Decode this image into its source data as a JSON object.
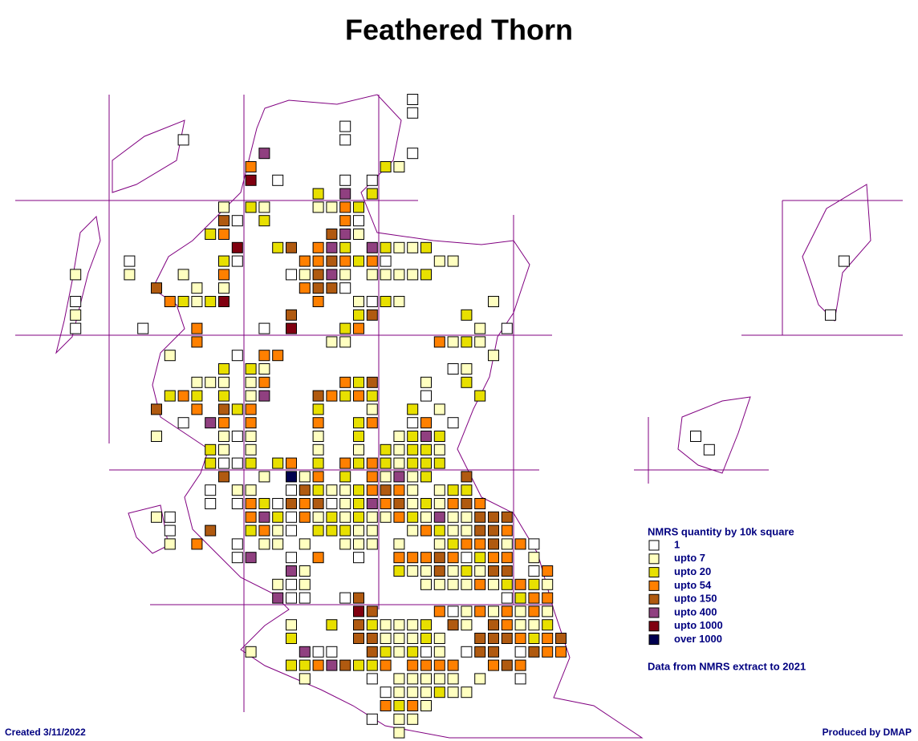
{
  "title": "Feathered Thorn",
  "legend": {
    "title": "NMRS quantity by 10k square",
    "items": [
      {
        "label": "1",
        "color": "#ffffff"
      },
      {
        "label": "upto 7",
        "color": "#ffffc0"
      },
      {
        "label": "upto 20",
        "color": "#e8e000"
      },
      {
        "label": "upto 54",
        "color": "#ff8000"
      },
      {
        "label": "upto 150",
        "color": "#b05a10"
      },
      {
        "label": "upto 400",
        "color": "#904080"
      },
      {
        "label": "upto 1000",
        "color": "#800010"
      },
      {
        "label": "over 1000",
        "color": "#000050"
      }
    ],
    "note": "Data from NMRS extract to 2021"
  },
  "footer": {
    "created": "Created 3/11/2022",
    "produced": "Produced by DMAP"
  },
  "squares": [
    [
      29,
      0,
      0
    ],
    [
      29,
      1,
      0
    ],
    [
      24,
      2,
      0
    ],
    [
      12,
      3,
      0
    ],
    [
      24,
      3,
      0
    ],
    [
      18,
      4,
      5
    ],
    [
      29,
      4,
      0
    ],
    [
      17,
      5,
      3
    ],
    [
      27,
      5,
      2
    ],
    [
      28,
      5,
      1
    ],
    [
      17,
      6,
      6
    ],
    [
      19,
      6,
      0
    ],
    [
      24,
      6,
      0
    ],
    [
      26,
      6,
      0
    ],
    [
      22,
      7,
      2
    ],
    [
      24,
      7,
      5
    ],
    [
      26,
      7,
      2
    ],
    [
      15,
      8,
      1
    ],
    [
      17,
      8,
      2
    ],
    [
      18,
      8,
      1
    ],
    [
      22,
      8,
      1
    ],
    [
      23,
      8,
      1
    ],
    [
      24,
      8,
      3
    ],
    [
      25,
      8,
      2
    ],
    [
      15,
      9,
      4
    ],
    [
      16,
      9,
      0
    ],
    [
      18,
      9,
      2
    ],
    [
      24,
      9,
      3
    ],
    [
      25,
      9,
      0
    ],
    [
      14,
      10,
      2
    ],
    [
      15,
      10,
      3
    ],
    [
      23,
      10,
      4
    ],
    [
      24,
      10,
      5
    ],
    [
      25,
      10,
      1
    ],
    [
      16,
      11,
      6
    ],
    [
      19,
      11,
      2
    ],
    [
      20,
      11,
      4
    ],
    [
      22,
      11,
      3
    ],
    [
      23,
      11,
      5
    ],
    [
      24,
      11,
      2
    ],
    [
      26,
      11,
      5
    ],
    [
      27,
      11,
      2
    ],
    [
      28,
      11,
      1
    ],
    [
      29,
      11,
      1
    ],
    [
      30,
      11,
      2
    ],
    [
      8,
      12,
      0
    ],
    [
      15,
      12,
      2
    ],
    [
      16,
      12,
      0
    ],
    [
      21,
      12,
      3
    ],
    [
      22,
      12,
      3
    ],
    [
      23,
      12,
      4
    ],
    [
      24,
      12,
      3
    ],
    [
      25,
      12,
      2
    ],
    [
      26,
      12,
      3
    ],
    [
      27,
      12,
      0
    ],
    [
      31,
      12,
      1
    ],
    [
      32,
      12,
      1
    ],
    [
      4,
      13,
      1
    ],
    [
      8,
      13,
      1
    ],
    [
      12,
      13,
      1
    ],
    [
      15,
      13,
      3
    ],
    [
      20,
      13,
      0
    ],
    [
      21,
      13,
      1
    ],
    [
      22,
      13,
      4
    ],
    [
      23,
      13,
      5
    ],
    [
      24,
      13,
      1
    ],
    [
      26,
      13,
      1
    ],
    [
      27,
      13,
      1
    ],
    [
      28,
      13,
      1
    ],
    [
      29,
      13,
      1
    ],
    [
      30,
      13,
      2
    ],
    [
      10,
      14,
      4
    ],
    [
      13,
      14,
      1
    ],
    [
      15,
      14,
      1
    ],
    [
      21,
      14,
      3
    ],
    [
      22,
      14,
      4
    ],
    [
      23,
      14,
      4
    ],
    [
      24,
      14,
      0
    ],
    [
      4,
      15,
      0
    ],
    [
      11,
      15,
      3
    ],
    [
      12,
      15,
      2
    ],
    [
      13,
      15,
      1
    ],
    [
      14,
      15,
      2
    ],
    [
      15,
      15,
      6
    ],
    [
      22,
      15,
      3
    ],
    [
      25,
      15,
      1
    ],
    [
      26,
      15,
      0
    ],
    [
      27,
      15,
      2
    ],
    [
      28,
      15,
      1
    ],
    [
      35,
      15,
      1
    ],
    [
      4,
      16,
      1
    ],
    [
      20,
      16,
      4
    ],
    [
      25,
      16,
      2
    ],
    [
      26,
      16,
      4
    ],
    [
      33,
      16,
      2
    ],
    [
      60,
      16,
      0
    ],
    [
      4,
      17,
      0
    ],
    [
      9,
      17,
      0
    ],
    [
      13,
      17,
      3
    ],
    [
      18,
      17,
      0
    ],
    [
      20,
      17,
      6
    ],
    [
      24,
      17,
      2
    ],
    [
      25,
      17,
      3
    ],
    [
      34,
      17,
      1
    ],
    [
      36,
      17,
      0
    ],
    [
      13,
      18,
      3
    ],
    [
      23,
      18,
      1
    ],
    [
      24,
      18,
      1
    ],
    [
      31,
      18,
      3
    ],
    [
      32,
      18,
      1
    ],
    [
      33,
      18,
      2
    ],
    [
      34,
      18,
      1
    ],
    [
      11,
      19,
      1
    ],
    [
      16,
      19,
      0
    ],
    [
      18,
      19,
      3
    ],
    [
      19,
      19,
      3
    ],
    [
      35,
      19,
      1
    ],
    [
      15,
      20,
      2
    ],
    [
      17,
      20,
      2
    ],
    [
      18,
      20,
      1
    ],
    [
      32,
      20,
      0
    ],
    [
      33,
      20,
      1
    ],
    [
      13,
      21,
      1
    ],
    [
      14,
      21,
      1
    ],
    [
      15,
      21,
      1
    ],
    [
      17,
      21,
      1
    ],
    [
      18,
      21,
      3
    ],
    [
      24,
      21,
      3
    ],
    [
      25,
      21,
      2
    ],
    [
      26,
      21,
      4
    ],
    [
      30,
      21,
      1
    ],
    [
      33,
      21,
      2
    ],
    [
      11,
      22,
      2
    ],
    [
      12,
      22,
      3
    ],
    [
      13,
      22,
      2
    ],
    [
      15,
      22,
      2
    ],
    [
      17,
      22,
      1
    ],
    [
      18,
      22,
      5
    ],
    [
      22,
      22,
      4
    ],
    [
      23,
      22,
      3
    ],
    [
      24,
      22,
      2
    ],
    [
      25,
      22,
      3
    ],
    [
      26,
      22,
      2
    ],
    [
      30,
      22,
      0
    ],
    [
      34,
      22,
      2
    ],
    [
      10,
      23,
      4
    ],
    [
      13,
      23,
      3
    ],
    [
      15,
      23,
      4
    ],
    [
      16,
      23,
      2
    ],
    [
      17,
      23,
      3
    ],
    [
      22,
      23,
      2
    ],
    [
      26,
      23,
      1
    ],
    [
      29,
      23,
      2
    ],
    [
      31,
      23,
      1
    ],
    [
      12,
      24,
      0
    ],
    [
      14,
      24,
      5
    ],
    [
      15,
      24,
      3
    ],
    [
      17,
      24,
      3
    ],
    [
      22,
      24,
      3
    ],
    [
      25,
      24,
      2
    ],
    [
      26,
      24,
      3
    ],
    [
      29,
      24,
      0
    ],
    [
      30,
      24,
      3
    ],
    [
      32,
      24,
      0
    ],
    [
      10,
      25,
      1
    ],
    [
      15,
      25,
      1
    ],
    [
      16,
      25,
      0
    ],
    [
      17,
      25,
      1
    ],
    [
      22,
      25,
      1
    ],
    [
      25,
      25,
      2
    ],
    [
      28,
      25,
      1
    ],
    [
      29,
      25,
      2
    ],
    [
      30,
      25,
      5
    ],
    [
      31,
      25,
      2
    ],
    [
      50,
      25,
      0
    ],
    [
      14,
      26,
      2
    ],
    [
      15,
      26,
      1
    ],
    [
      17,
      26,
      1
    ],
    [
      22,
      26,
      1
    ],
    [
      25,
      26,
      1
    ],
    [
      27,
      26,
      2
    ],
    [
      28,
      26,
      1
    ],
    [
      29,
      26,
      2
    ],
    [
      30,
      26,
      2
    ],
    [
      31,
      26,
      1
    ],
    [
      51,
      26,
      0
    ],
    [
      14,
      27,
      2
    ],
    [
      15,
      27,
      0
    ],
    [
      16,
      27,
      0
    ],
    [
      17,
      27,
      2
    ],
    [
      19,
      27,
      2
    ],
    [
      20,
      27,
      3
    ],
    [
      22,
      27,
      2
    ],
    [
      24,
      27,
      3
    ],
    [
      25,
      27,
      2
    ],
    [
      26,
      27,
      3
    ],
    [
      27,
      27,
      2
    ],
    [
      28,
      27,
      1
    ],
    [
      29,
      27,
      2
    ],
    [
      30,
      27,
      2
    ],
    [
      31,
      27,
      2
    ],
    [
      15,
      28,
      4
    ],
    [
      18,
      28,
      1
    ],
    [
      20,
      28,
      7
    ],
    [
      21,
      28,
      1
    ],
    [
      22,
      28,
      3
    ],
    [
      24,
      28,
      2
    ],
    [
      26,
      28,
      3
    ],
    [
      27,
      28,
      1
    ],
    [
      28,
      28,
      5
    ],
    [
      29,
      28,
      1
    ],
    [
      30,
      28,
      2
    ],
    [
      33,
      28,
      4
    ],
    [
      14,
      29,
      0
    ],
    [
      16,
      29,
      1
    ],
    [
      17,
      29,
      1
    ],
    [
      20,
      29,
      0
    ],
    [
      21,
      29,
      4
    ],
    [
      22,
      29,
      2
    ],
    [
      23,
      29,
      1
    ],
    [
      24,
      29,
      1
    ],
    [
      25,
      29,
      2
    ],
    [
      26,
      29,
      3
    ],
    [
      27,
      29,
      4
    ],
    [
      28,
      29,
      3
    ],
    [
      29,
      29,
      1
    ],
    [
      31,
      29,
      1
    ],
    [
      32,
      29,
      2
    ],
    [
      33,
      29,
      2
    ],
    [
      14,
      30,
      0
    ],
    [
      16,
      30,
      0
    ],
    [
      17,
      30,
      3
    ],
    [
      18,
      30,
      2
    ],
    [
      19,
      30,
      0
    ],
    [
      20,
      30,
      4
    ],
    [
      21,
      30,
      3
    ],
    [
      22,
      30,
      4
    ],
    [
      23,
      30,
      0
    ],
    [
      24,
      30,
      1
    ],
    [
      25,
      30,
      2
    ],
    [
      26,
      30,
      5
    ],
    [
      27,
      30,
      3
    ],
    [
      28,
      30,
      4
    ],
    [
      29,
      30,
      1
    ],
    [
      30,
      30,
      2
    ],
    [
      31,
      30,
      1
    ],
    [
      32,
      30,
      3
    ],
    [
      33,
      30,
      4
    ],
    [
      34,
      30,
      3
    ],
    [
      10,
      31,
      1
    ],
    [
      11,
      31,
      0
    ],
    [
      17,
      31,
      3
    ],
    [
      18,
      31,
      5
    ],
    [
      19,
      31,
      2
    ],
    [
      20,
      31,
      0
    ],
    [
      21,
      31,
      3
    ],
    [
      22,
      31,
      1
    ],
    [
      23,
      31,
      2
    ],
    [
      24,
      31,
      1
    ],
    [
      25,
      31,
      2
    ],
    [
      26,
      31,
      1
    ],
    [
      27,
      31,
      1
    ],
    [
      28,
      31,
      3
    ],
    [
      29,
      31,
      2
    ],
    [
      30,
      31,
      1
    ],
    [
      31,
      31,
      5
    ],
    [
      32,
      31,
      1
    ],
    [
      33,
      31,
      1
    ],
    [
      34,
      31,
      4
    ],
    [
      35,
      31,
      4
    ],
    [
      36,
      31,
      4
    ],
    [
      11,
      32,
      0
    ],
    [
      14,
      32,
      4
    ],
    [
      17,
      32,
      2
    ],
    [
      18,
      32,
      3
    ],
    [
      19,
      32,
      1
    ],
    [
      20,
      32,
      0
    ],
    [
      22,
      32,
      2
    ],
    [
      23,
      32,
      2
    ],
    [
      24,
      32,
      2
    ],
    [
      25,
      32,
      1
    ],
    [
      26,
      32,
      1
    ],
    [
      29,
      32,
      1
    ],
    [
      30,
      32,
      3
    ],
    [
      31,
      32,
      2
    ],
    [
      32,
      32,
      1
    ],
    [
      33,
      32,
      1
    ],
    [
      34,
      32,
      4
    ],
    [
      35,
      32,
      4
    ],
    [
      36,
      32,
      3
    ],
    [
      11,
      33,
      1
    ],
    [
      13,
      33,
      3
    ],
    [
      16,
      33,
      0
    ],
    [
      18,
      33,
      1
    ],
    [
      19,
      33,
      1
    ],
    [
      21,
      33,
      1
    ],
    [
      24,
      33,
      1
    ],
    [
      25,
      33,
      1
    ],
    [
      26,
      33,
      1
    ],
    [
      28,
      33,
      1
    ],
    [
      31,
      33,
      1
    ],
    [
      32,
      33,
      2
    ],
    [
      33,
      33,
      3
    ],
    [
      34,
      33,
      3
    ],
    [
      35,
      33,
      4
    ],
    [
      36,
      33,
      1
    ],
    [
      37,
      33,
      3
    ],
    [
      38,
      33,
      0
    ],
    [
      16,
      34,
      0
    ],
    [
      17,
      34,
      5
    ],
    [
      20,
      34,
      0
    ],
    [
      22,
      34,
      3
    ],
    [
      25,
      34,
      0
    ],
    [
      28,
      34,
      3
    ],
    [
      29,
      34,
      3
    ],
    [
      30,
      34,
      3
    ],
    [
      31,
      34,
      4
    ],
    [
      32,
      34,
      3
    ],
    [
      33,
      34,
      0
    ],
    [
      34,
      34,
      2
    ],
    [
      35,
      34,
      3
    ],
    [
      36,
      34,
      3
    ],
    [
      38,
      34,
      1
    ],
    [
      20,
      35,
      5
    ],
    [
      21,
      35,
      1
    ],
    [
      28,
      35,
      2
    ],
    [
      29,
      35,
      1
    ],
    [
      30,
      35,
      1
    ],
    [
      31,
      35,
      4
    ],
    [
      32,
      35,
      1
    ],
    [
      33,
      35,
      2
    ],
    [
      34,
      35,
      1
    ],
    [
      35,
      35,
      4
    ],
    [
      36,
      35,
      4
    ],
    [
      38,
      35,
      0
    ],
    [
      39,
      35,
      3
    ],
    [
      19,
      36,
      1
    ],
    [
      20,
      36,
      0
    ],
    [
      21,
      36,
      1
    ],
    [
      30,
      36,
      1
    ],
    [
      31,
      36,
      1
    ],
    [
      32,
      36,
      1
    ],
    [
      33,
      36,
      1
    ],
    [
      34,
      36,
      3
    ],
    [
      35,
      36,
      1
    ],
    [
      36,
      36,
      2
    ],
    [
      37,
      36,
      3
    ],
    [
      38,
      36,
      2
    ],
    [
      39,
      36,
      1
    ],
    [
      19,
      37,
      5
    ],
    [
      20,
      37,
      0
    ],
    [
      21,
      37,
      0
    ],
    [
      24,
      37,
      0
    ],
    [
      25,
      37,
      4
    ],
    [
      36,
      37,
      0
    ],
    [
      37,
      37,
      2
    ],
    [
      38,
      37,
      3
    ],
    [
      39,
      37,
      3
    ],
    [
      25,
      38,
      6
    ],
    [
      26,
      38,
      4
    ],
    [
      31,
      38,
      3
    ],
    [
      32,
      38,
      0
    ],
    [
      33,
      38,
      1
    ],
    [
      34,
      38,
      3
    ],
    [
      35,
      38,
      1
    ],
    [
      36,
      38,
      3
    ],
    [
      37,
      38,
      1
    ],
    [
      38,
      38,
      3
    ],
    [
      39,
      38,
      1
    ],
    [
      20,
      39,
      1
    ],
    [
      23,
      39,
      2
    ],
    [
      25,
      39,
      4
    ],
    [
      26,
      39,
      2
    ],
    [
      27,
      39,
      1
    ],
    [
      28,
      39,
      1
    ],
    [
      29,
      39,
      1
    ],
    [
      30,
      39,
      2
    ],
    [
      32,
      39,
      4
    ],
    [
      33,
      39,
      1
    ],
    [
      35,
      39,
      4
    ],
    [
      36,
      39,
      3
    ],
    [
      37,
      39,
      1
    ],
    [
      38,
      39,
      1
    ],
    [
      39,
      39,
      2
    ],
    [
      20,
      40,
      2
    ],
    [
      25,
      40,
      4
    ],
    [
      26,
      40,
      4
    ],
    [
      27,
      40,
      1
    ],
    [
      28,
      40,
      1
    ],
    [
      29,
      40,
      1
    ],
    [
      30,
      40,
      2
    ],
    [
      31,
      40,
      1
    ],
    [
      34,
      40,
      4
    ],
    [
      35,
      40,
      4
    ],
    [
      36,
      40,
      4
    ],
    [
      37,
      40,
      3
    ],
    [
      38,
      40,
      2
    ],
    [
      39,
      40,
      3
    ],
    [
      40,
      40,
      4
    ],
    [
      17,
      41,
      1
    ],
    [
      21,
      41,
      5
    ],
    [
      22,
      41,
      0
    ],
    [
      23,
      41,
      0
    ],
    [
      26,
      41,
      4
    ],
    [
      27,
      41,
      2
    ],
    [
      28,
      41,
      1
    ],
    [
      29,
      41,
      2
    ],
    [
      30,
      41,
      0
    ],
    [
      31,
      41,
      1
    ],
    [
      33,
      41,
      0
    ],
    [
      34,
      41,
      4
    ],
    [
      35,
      41,
      4
    ],
    [
      37,
      41,
      0
    ],
    [
      38,
      41,
      4
    ],
    [
      39,
      41,
      3
    ],
    [
      40,
      41,
      3
    ],
    [
      20,
      42,
      2
    ],
    [
      21,
      42,
      2
    ],
    [
      22,
      42,
      3
    ],
    [
      23,
      42,
      5
    ],
    [
      24,
      42,
      4
    ],
    [
      25,
      42,
      2
    ],
    [
      26,
      42,
      2
    ],
    [
      27,
      42,
      3
    ],
    [
      29,
      42,
      3
    ],
    [
      30,
      42,
      3
    ],
    [
      31,
      42,
      3
    ],
    [
      32,
      42,
      3
    ],
    [
      35,
      42,
      3
    ],
    [
      36,
      42,
      4
    ],
    [
      37,
      42,
      3
    ],
    [
      21,
      43,
      1
    ],
    [
      26,
      43,
      0
    ],
    [
      28,
      43,
      1
    ],
    [
      29,
      43,
      1
    ],
    [
      30,
      43,
      1
    ],
    [
      31,
      43,
      1
    ],
    [
      32,
      43,
      1
    ],
    [
      34,
      43,
      1
    ],
    [
      37,
      43,
      0
    ],
    [
      27,
      44,
      0
    ],
    [
      28,
      44,
      1
    ],
    [
      29,
      44,
      1
    ],
    [
      30,
      44,
      1
    ],
    [
      31,
      44,
      2
    ],
    [
      32,
      44,
      1
    ],
    [
      33,
      44,
      1
    ],
    [
      27,
      45,
      3
    ],
    [
      28,
      45,
      2
    ],
    [
      29,
      45,
      3
    ],
    [
      30,
      45,
      1
    ],
    [
      26,
      46,
      0
    ],
    [
      28,
      46,
      1
    ],
    [
      29,
      46,
      1
    ],
    [
      28,
      47,
      1
    ],
    [
      61,
      12,
      0
    ]
  ]
}
